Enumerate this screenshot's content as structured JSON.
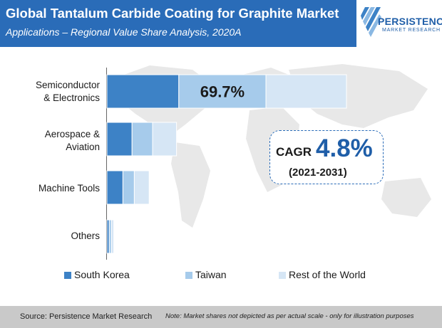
{
  "header": {
    "title": "Global Tantalum Carbide Coating for Graphite Market",
    "subtitle": "Applications – Regional Value Share Analysis, 2020A",
    "logo_name": "PERSISTENCE",
    "logo_sub": "MARKET RESEARCH"
  },
  "chart_data": {
    "type": "bar",
    "orientation": "horizontal",
    "stacked": true,
    "categories": [
      "Semiconductor & Electronics",
      "Aerospace & Aviation",
      "Machine Tools",
      "Others"
    ],
    "category_labels": [
      [
        "Semiconductor",
        "& Electronics"
      ],
      [
        "Aerospace &",
        "Aviation"
      ],
      [
        "Machine Tools"
      ],
      [
        "Others"
      ]
    ],
    "series": [
      {
        "name": "South Korea",
        "values": [
          31.5,
          11.0,
          7.0,
          1.0
        ],
        "color": "#3d82c6"
      },
      {
        "name": "Taiwan",
        "values": [
          38.2,
          9.0,
          5.0,
          1.0
        ],
        "color": "#a6cbeb"
      },
      {
        "name": "Rest of the World",
        "values": [
          35.3,
          10.5,
          6.5,
          1.0
        ],
        "color": "#d6e6f5"
      }
    ],
    "data_labels": [
      {
        "category": "Semiconductor & Electronics",
        "series": "Taiwan",
        "text": "69.7%"
      }
    ],
    "legend_position": "bottom",
    "grid": false,
    "xlim": [
      0,
      105
    ]
  },
  "cagr": {
    "label": "CAGR",
    "value": "4.8%",
    "period": "(2021-2031)"
  },
  "footer": {
    "source": "Source: Persistence Market Research",
    "note": "Note: Market shares not depicted as per actual scale - only for illustration purposes"
  },
  "colors": {
    "header_band": "#2a6cb8",
    "accent": "#1f5ea8",
    "footer": "#c9c9c9",
    "map": "#e8e8e8"
  }
}
